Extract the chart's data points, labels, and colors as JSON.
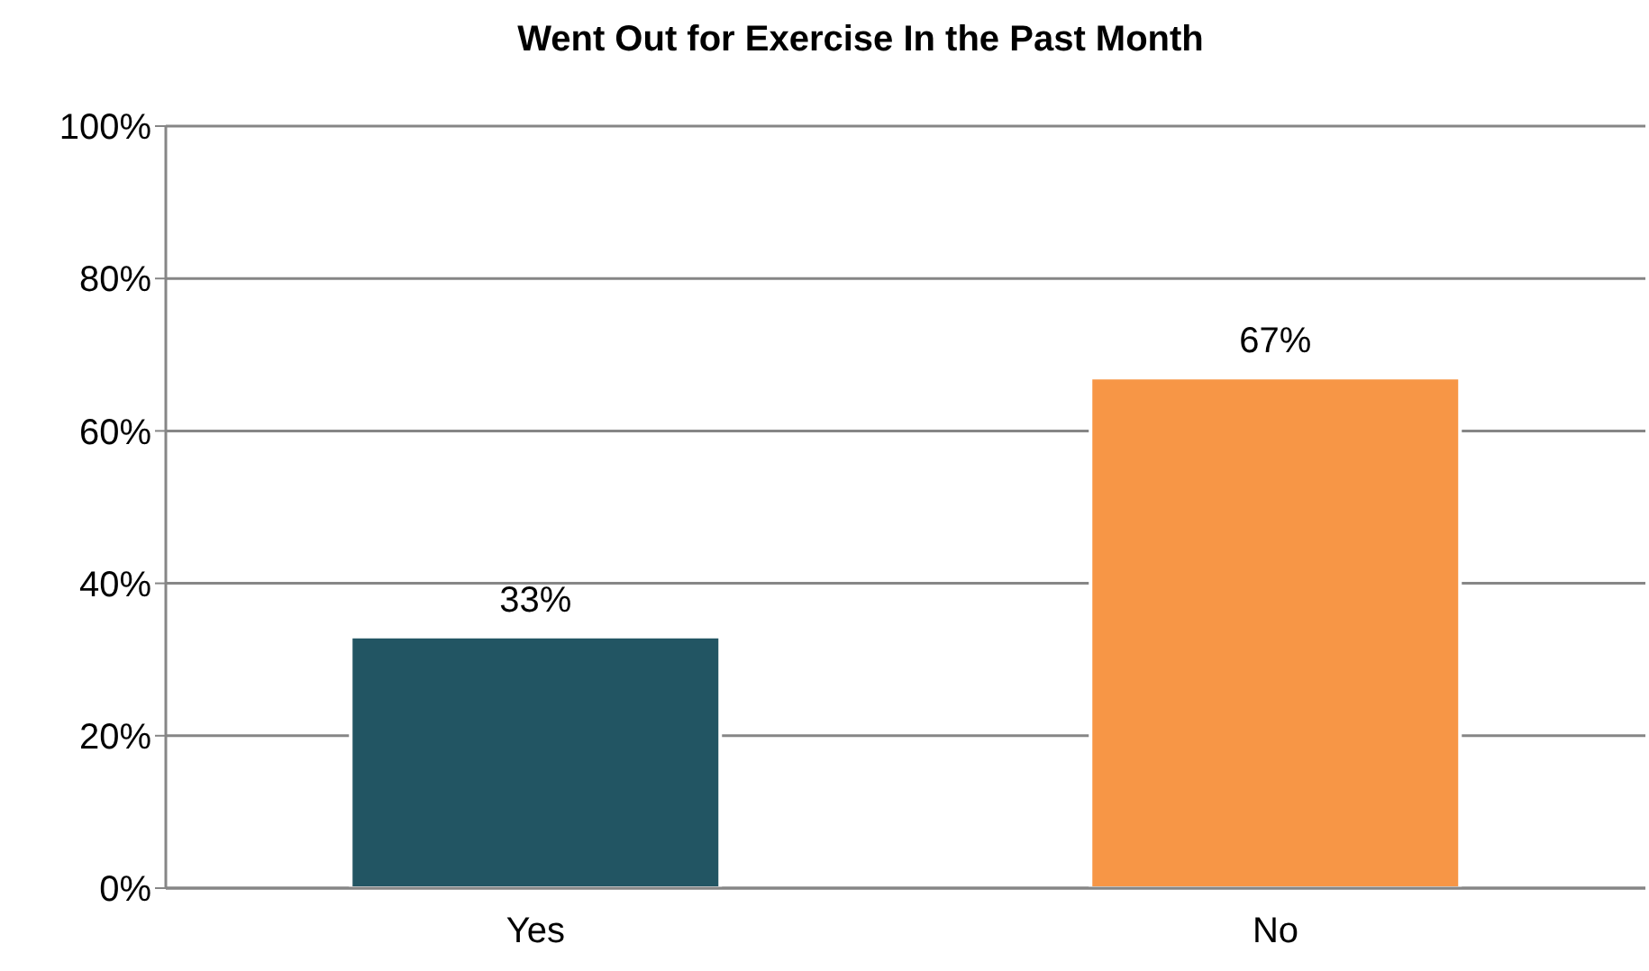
{
  "chart_data": {
    "type": "bar",
    "title": "Went Out for Exercise In the Past Month",
    "categories": [
      "Yes",
      "No"
    ],
    "values": [
      33,
      67
    ],
    "colors": [
      "#225563",
      "#f79646"
    ],
    "value_labels": [
      "33%",
      "67%"
    ],
    "ylim": [
      0,
      100
    ],
    "yticks": [
      {
        "value": 0,
        "label": "0%"
      },
      {
        "value": 20,
        "label": "20%"
      },
      {
        "value": 40,
        "label": "40%"
      },
      {
        "value": 60,
        "label": "60%"
      },
      {
        "value": 80,
        "label": "80%"
      },
      {
        "value": 100,
        "label": "100%"
      }
    ],
    "grid": "y",
    "legend": false
  }
}
